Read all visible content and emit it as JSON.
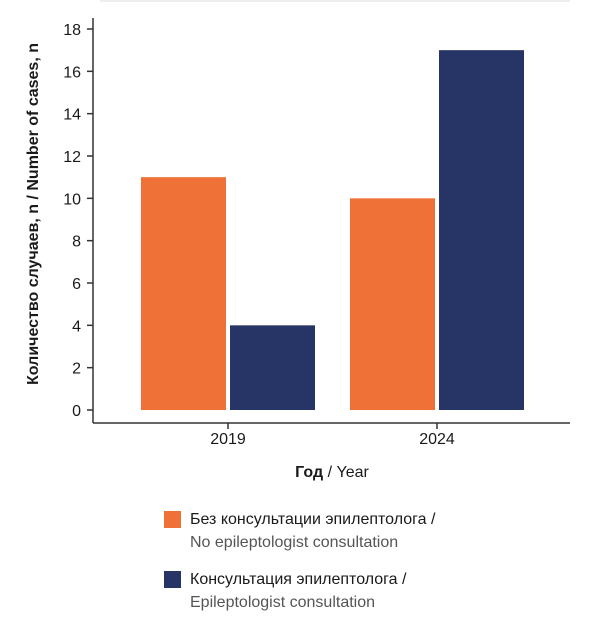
{
  "chart_data": {
    "type": "bar",
    "categories": [
      "2019",
      "2024"
    ],
    "series": [
      {
        "name_ru": "Без консультации эпилептолога /",
        "name_en": "No epileptologist consultation",
        "color": "#f07138",
        "values": [
          11,
          10
        ]
      },
      {
        "name_ru": "Консультация эпилептолога /",
        "name_en": "Epileptologist consultation",
        "color": "#273466",
        "values": [
          4,
          17
        ]
      }
    ],
    "xlabel_ru": "Год",
    "xlabel_sep": " / ",
    "xlabel_en": "Year",
    "ylabel": "Количество случаев, n / Number of cases, n",
    "ylim": [
      0,
      18
    ],
    "yticks": [
      0,
      2,
      4,
      6,
      8,
      10,
      12,
      14,
      16,
      18
    ],
    "legend_position": "bottom"
  }
}
